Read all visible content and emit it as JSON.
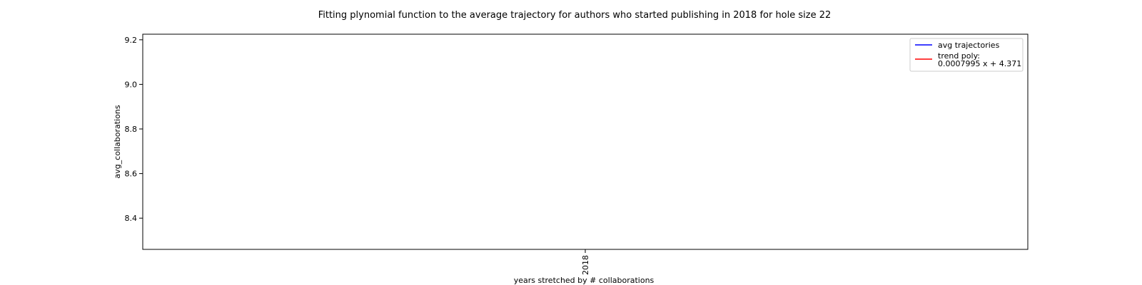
{
  "chart_data": {
    "type": "line",
    "title": "Fitting plynomial function to the average trajectory for authors who started publishing in 2018 for hole size 22",
    "xlabel": "years stretched by # collaborations",
    "ylabel": "avg_collaborations",
    "x_ticks": [
      "2018"
    ],
    "y_ticks": [
      8.4,
      8.6,
      8.8,
      9.0,
      9.2
    ],
    "ylim": [
      8.26,
      9.225
    ],
    "grid": false,
    "legend_position": "top-right",
    "series": [
      {
        "name": "avg trajectories",
        "color": "#0000ff",
        "x": [],
        "y": []
      },
      {
        "name": "trend poly:",
        "formula": "0.0007995 x + 4.371",
        "color": "#ff0000",
        "x": [],
        "y": []
      }
    ]
  }
}
